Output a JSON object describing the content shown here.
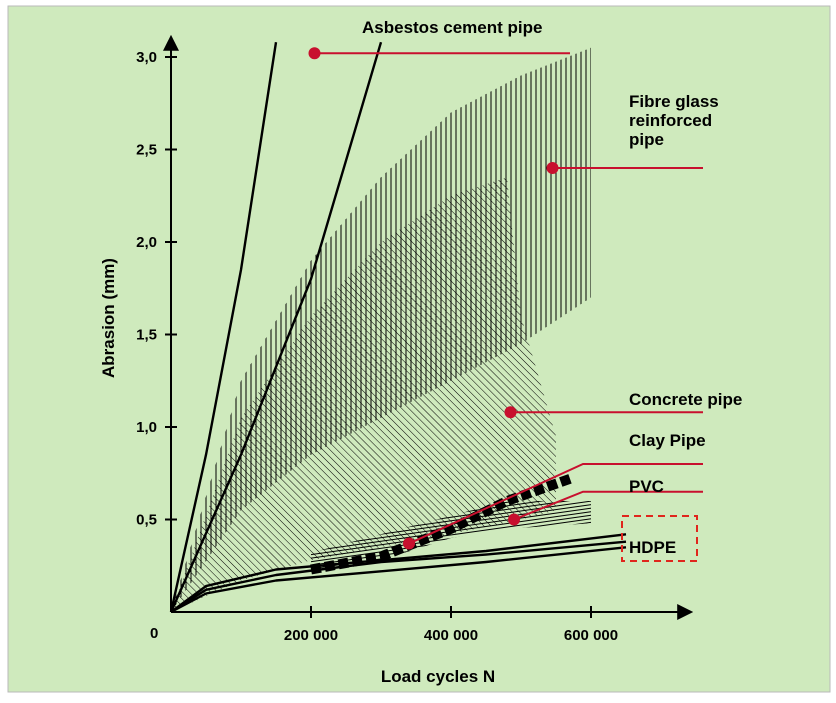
{
  "chart_data": {
    "type": "line",
    "title": "",
    "xlabel": "Load cycles N",
    "ylabel": "Abrasion (mm)",
    "origin_label": "0",
    "xlim": [
      0,
      750000
    ],
    "ylim": [
      0,
      3.1
    ],
    "x_ticks": [
      {
        "value": 200000,
        "label": "200 000"
      },
      {
        "value": 400000,
        "label": "400 000"
      },
      {
        "value": 600000,
        "label": "600 000"
      }
    ],
    "y_ticks": [
      {
        "value": 0.5,
        "label": "0,5"
      },
      {
        "value": 1.0,
        "label": "1,0"
      },
      {
        "value": 1.5,
        "label": "1,5"
      },
      {
        "value": 2.0,
        "label": "2,0"
      },
      {
        "value": 2.5,
        "label": "2,5"
      },
      {
        "value": 3.0,
        "label": "3,0"
      }
    ],
    "colors": {
      "background": "#cfeabd",
      "frame": "#b9b9b9",
      "ink": "#000000",
      "leader": "#c8102e",
      "hdpe_box": "#e0261c"
    },
    "series": [
      {
        "name": "Asbestos cement pipe",
        "kind": "line",
        "lines": [
          {
            "points": [
              [
                0,
                0
              ],
              [
                50000,
                0.85
              ],
              [
                100000,
                1.85
              ],
              [
                150000,
                3.08
              ]
            ]
          },
          {
            "points": [
              [
                0,
                0
              ],
              [
                100000,
                0.85
              ],
              [
                200000,
                1.8
              ],
              [
                300000,
                3.08
              ]
            ]
          }
        ]
      },
      {
        "name": "Fibre glass reinforced pipe",
        "kind": "band",
        "hatch": "vertical",
        "upper": [
          [
            0,
            0
          ],
          [
            100000,
            1.25
          ],
          [
            200000,
            1.9
          ],
          [
            300000,
            2.35
          ],
          [
            400000,
            2.7
          ],
          [
            500000,
            2.9
          ],
          [
            600000,
            3.05
          ]
        ],
        "lower": [
          [
            0,
            0
          ],
          [
            100000,
            0.55
          ],
          [
            200000,
            0.85
          ],
          [
            300000,
            1.05
          ],
          [
            400000,
            1.25
          ],
          [
            500000,
            1.45
          ],
          [
            600000,
            1.7
          ]
        ]
      },
      {
        "name": "Concrete pipe",
        "kind": "band",
        "hatch": "diagonal",
        "upper": [
          [
            0,
            0
          ],
          [
            100000,
            1.05
          ],
          [
            200000,
            1.6
          ],
          [
            300000,
            2.0
          ],
          [
            400000,
            2.25
          ],
          [
            480000,
            2.35
          ],
          [
            500000,
            1.6
          ],
          [
            550000,
            0.95
          ]
        ],
        "lower": [
          [
            0,
            0
          ],
          [
            100000,
            0.17
          ],
          [
            200000,
            0.28
          ],
          [
            300000,
            0.35
          ],
          [
            400000,
            0.42
          ],
          [
            500000,
            0.5
          ],
          [
            550000,
            0.55
          ]
        ]
      },
      {
        "name": "Clay Pipe",
        "kind": "dashed",
        "points": [
          [
            200000,
            0.23
          ],
          [
            300000,
            0.3
          ],
          [
            400000,
            0.45
          ],
          [
            480000,
            0.6
          ],
          [
            570000,
            0.72
          ]
        ]
      },
      {
        "name": "PVC",
        "kind": "band",
        "hatch": "horizontal",
        "upper": [
          [
            200000,
            0.32
          ],
          [
            300000,
            0.42
          ],
          [
            400000,
            0.52
          ],
          [
            480000,
            0.6
          ],
          [
            600000,
            0.6
          ]
        ],
        "lower": [
          [
            200000,
            0.23
          ],
          [
            300000,
            0.28
          ],
          [
            400000,
            0.4
          ],
          [
            480000,
            0.45
          ],
          [
            600000,
            0.48
          ]
        ]
      },
      {
        "name": "HDPE",
        "kind": "line",
        "lines": [
          {
            "points": [
              [
                0,
                0
              ],
              [
                50000,
                0.14
              ],
              [
                150000,
                0.23
              ],
              [
                300000,
                0.28
              ],
              [
                450000,
                0.33
              ],
              [
                650000,
                0.42
              ]
            ]
          },
          {
            "points": [
              [
                0,
                0
              ],
              [
                50000,
                0.12
              ],
              [
                150000,
                0.2
              ],
              [
                300000,
                0.27
              ],
              [
                450000,
                0.31
              ],
              [
                650000,
                0.38
              ]
            ]
          },
          {
            "points": [
              [
                0,
                0
              ],
              [
                50000,
                0.1
              ],
              [
                150000,
                0.17
              ],
              [
                300000,
                0.22
              ],
              [
                450000,
                0.27
              ],
              [
                650000,
                0.35
              ]
            ]
          }
        ]
      }
    ],
    "annotations": [
      {
        "text_lines": [
          "Asbestos cement pipe"
        ],
        "marker": [
          205000,
          3.02
        ],
        "line_end": [
          570000,
          3.02
        ]
      },
      {
        "text_lines": [
          "Fibre glass",
          "reinforced",
          "pipe"
        ],
        "marker": [
          545000,
          2.4
        ],
        "line_end": [
          760000,
          2.4
        ]
      },
      {
        "text_lines": [
          "Concrete pipe"
        ],
        "marker": [
          485000,
          1.08
        ],
        "line_end": [
          760000,
          1.08
        ]
      },
      {
        "text_lines": [
          "Clay Pipe"
        ],
        "marker": [
          340000,
          0.37
        ],
        "line_end": [
          760000,
          0.8
        ]
      },
      {
        "text_lines": [
          "PVC"
        ],
        "marker": [
          490000,
          0.5
        ],
        "line_end": [
          760000,
          0.65
        ]
      },
      {
        "text_lines": [
          "HDPE"
        ],
        "marker": null,
        "line_end": null,
        "boxed": true
      }
    ]
  }
}
